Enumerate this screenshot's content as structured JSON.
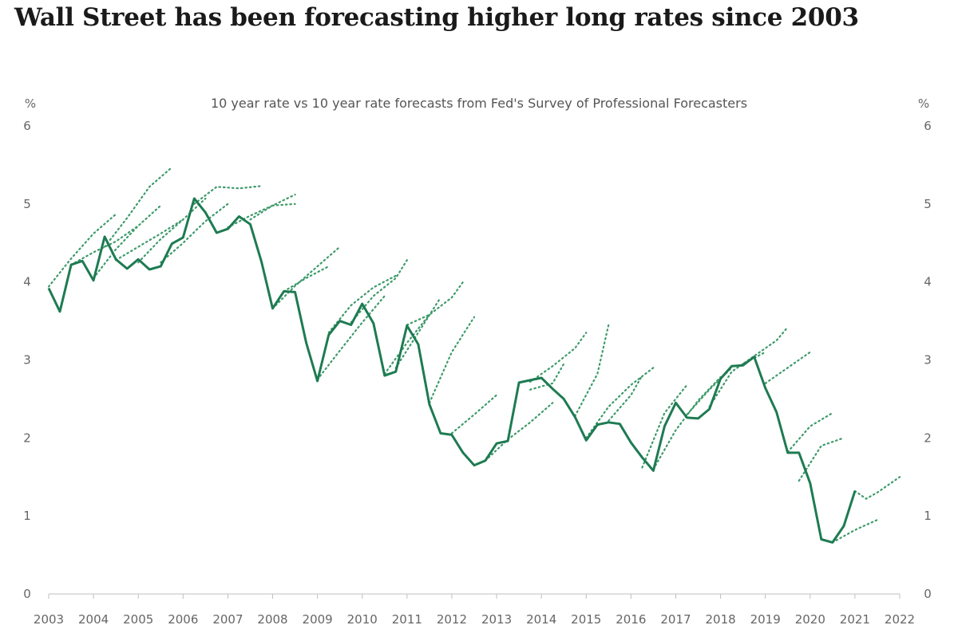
{
  "headline": "Wall Street has been forecasting higher long rates since 2003",
  "chart_data": {
    "type": "line",
    "title": "10 year rate vs 10 year rate forecasts from Fed's Survey of Professional Forecasters",
    "ylabel_left": "%",
    "ylabel_right": "%",
    "xlim": [
      2003,
      2022
    ],
    "ylim": [
      0,
      6
    ],
    "x_ticks": [
      "2003",
      "2004",
      "2005",
      "2006",
      "2007",
      "2008",
      "2009",
      "2010",
      "2011",
      "2012",
      "2013",
      "2014",
      "2015",
      "2016",
      "2017",
      "2018",
      "2019",
      "2020",
      "2021",
      "2022"
    ],
    "y_ticks": [
      "0",
      "1",
      "2",
      "3",
      "4",
      "5",
      "6"
    ],
    "grid": false,
    "colors": {
      "actual": "#1e7b52",
      "forecast": "#3d9a6a"
    },
    "series": [
      {
        "style": "solid",
        "x": [
          2003.0,
          2003.25,
          2003.5,
          2003.75,
          2004.0,
          2004.25,
          2004.5,
          2004.75,
          2005.0,
          2005.25,
          2005.5,
          2005.75,
          2006.0,
          2006.25,
          2006.5,
          2006.75,
          2007.0,
          2007.25,
          2007.5,
          2007.75,
          2008.0,
          2008.25,
          2008.5,
          2008.75,
          2009.0,
          2009.25,
          2009.5,
          2009.75,
          2010.0,
          2010.25,
          2010.5,
          2010.75,
          2011.0,
          2011.25,
          2011.5,
          2011.75,
          2012.0,
          2012.25,
          2012.5,
          2012.75,
          2013.0,
          2013.25,
          2013.5,
          2013.75,
          2014.0,
          2014.25,
          2014.5,
          2014.75,
          2015.0,
          2015.25,
          2015.5,
          2015.75,
          2016.0,
          2016.25,
          2016.5,
          2016.75,
          2017.0,
          2017.25,
          2017.5,
          2017.75,
          2018.0,
          2018.25,
          2018.5,
          2018.75,
          2019.0,
          2019.25,
          2019.5,
          2019.75,
          2020.0,
          2020.25,
          2020.5,
          2020.75,
          2021.0
        ],
        "values": [
          3.92,
          3.62,
          4.22,
          4.27,
          4.02,
          4.58,
          4.29,
          4.17,
          4.29,
          4.16,
          4.2,
          4.49,
          4.57,
          5.07,
          4.89,
          4.63,
          4.68,
          4.84,
          4.74,
          4.26,
          3.66,
          3.88,
          3.87,
          3.22,
          2.73,
          3.32,
          3.5,
          3.45,
          3.72,
          3.47,
          2.8,
          2.85,
          3.44,
          3.2,
          2.43,
          2.06,
          2.04,
          1.81,
          1.65,
          1.71,
          1.93,
          1.96,
          2.71,
          2.74,
          2.77,
          2.63,
          2.5,
          2.27,
          1.97,
          2.17,
          2.2,
          2.18,
          1.94,
          1.75,
          1.58,
          2.15,
          2.45,
          2.26,
          2.25,
          2.37,
          2.76,
          2.92,
          2.93,
          3.04,
          2.64,
          2.33,
          1.81,
          1.81,
          1.42,
          0.7,
          0.66,
          0.87,
          1.32
        ]
      },
      {
        "style": "dotted",
        "x": [
          2003.0,
          2003.5,
          2004.0,
          2004.5
        ],
        "values": [
          3.94,
          4.3,
          4.62,
          4.87
        ]
      },
      {
        "style": "dotted",
        "x": [
          2003.5,
          2004.0,
          2004.5,
          2005.0
        ],
        "values": [
          4.22,
          4.38,
          4.52,
          4.72
        ]
      },
      {
        "style": "dotted",
        "x": [
          2004.0,
          2004.5,
          2005.0,
          2005.5
        ],
        "values": [
          4.05,
          4.42,
          4.72,
          4.98
        ]
      },
      {
        "style": "dotted",
        "x": [
          2004.25,
          2004.75,
          2005.25,
          2005.75
        ],
        "values": [
          4.45,
          4.82,
          5.22,
          5.47
        ]
      },
      {
        "style": "dotted",
        "x": [
          2004.5,
          2005.0,
          2005.5,
          2006.0
        ],
        "values": [
          4.28,
          4.45,
          4.62,
          4.8
        ]
      },
      {
        "style": "dotted",
        "x": [
          2005.0,
          2005.5,
          2006.0,
          2006.5
        ],
        "values": [
          4.25,
          4.55,
          4.8,
          5.07
        ]
      },
      {
        "style": "dotted",
        "x": [
          2005.5,
          2006.0,
          2006.5,
          2007.0
        ],
        "values": [
          4.25,
          4.5,
          4.78,
          5.0
        ]
      },
      {
        "style": "dotted",
        "x": [
          2006.25,
          2006.75,
          2007.25,
          2007.75
        ],
        "values": [
          5.0,
          5.22,
          5.2,
          5.23
        ]
      },
      {
        "style": "dotted",
        "x": [
          2007.0,
          2007.5,
          2008.0,
          2008.5
        ],
        "values": [
          4.7,
          4.85,
          4.98,
          5.12
        ]
      },
      {
        "style": "dotted",
        "x": [
          2007.5,
          2008.0,
          2008.5
        ],
        "values": [
          4.8,
          4.98,
          5.0
        ]
      },
      {
        "style": "dotted",
        "x": [
          2008.0,
          2008.5,
          2009.0,
          2009.5
        ],
        "values": [
          3.66,
          3.95,
          4.2,
          4.45
        ]
      },
      {
        "style": "dotted",
        "x": [
          2008.25,
          2008.75,
          2009.25
        ],
        "values": [
          3.88,
          4.05,
          4.2
        ]
      },
      {
        "style": "dotted",
        "x": [
          2009.0,
          2009.5,
          2010.0,
          2010.5
        ],
        "values": [
          2.75,
          3.12,
          3.48,
          3.82
        ]
      },
      {
        "style": "dotted",
        "x": [
          2009.25,
          2009.75,
          2010.25,
          2010.75
        ],
        "values": [
          3.35,
          3.7,
          3.93,
          4.08
        ]
      },
      {
        "style": "dotted",
        "x": [
          2009.75,
          2010.25,
          2010.75,
          2011.0
        ],
        "values": [
          3.48,
          3.82,
          4.05,
          4.28
        ]
      },
      {
        "style": "dotted",
        "x": [
          2010.5,
          2011.0,
          2011.5
        ],
        "values": [
          2.82,
          3.22,
          3.58
        ]
      },
      {
        "style": "dotted",
        "x": [
          2010.75,
          2011.25,
          2011.75
        ],
        "values": [
          2.9,
          3.35,
          3.8
        ]
      },
      {
        "style": "dotted",
        "x": [
          2011.0,
          2011.5,
          2012.0,
          2012.25
        ],
        "values": [
          3.45,
          3.58,
          3.8,
          4.0
        ]
      },
      {
        "style": "dotted",
        "x": [
          2011.5,
          2012.0,
          2012.5
        ],
        "values": [
          2.45,
          3.1,
          3.55
        ]
      },
      {
        "style": "dotted",
        "x": [
          2012.0,
          2012.5,
          2013.0
        ],
        "values": [
          2.06,
          2.3,
          2.55
        ]
      },
      {
        "style": "dotted",
        "x": [
          2012.75,
          2013.25,
          2013.75,
          2014.25
        ],
        "values": [
          1.71,
          1.98,
          2.2,
          2.45
        ]
      },
      {
        "style": "dotted",
        "x": [
          2013.75,
          2014.25,
          2014.75,
          2015.0
        ],
        "values": [
          2.72,
          2.92,
          3.15,
          3.35
        ]
      },
      {
        "style": "dotted",
        "x": [
          2013.75,
          2014.25,
          2014.5
        ],
        "values": [
          2.62,
          2.7,
          2.95
        ]
      },
      {
        "style": "dotted",
        "x": [
          2014.75,
          2015.25,
          2015.5
        ],
        "values": [
          2.28,
          2.82,
          3.45
        ]
      },
      {
        "style": "dotted",
        "x": [
          2015.0,
          2015.5,
          2016.0,
          2016.5
        ],
        "values": [
          2.0,
          2.4,
          2.68,
          2.9
        ]
      },
      {
        "style": "dotted",
        "x": [
          2015.5,
          2016.0,
          2016.25
        ],
        "values": [
          2.22,
          2.55,
          2.8
        ]
      },
      {
        "style": "dotted",
        "x": [
          2016.25,
          2016.75,
          2017.25
        ],
        "values": [
          1.62,
          2.32,
          2.68
        ]
      },
      {
        "style": "dotted",
        "x": [
          2016.5,
          2017.0,
          2017.5,
          2018.0
        ],
        "values": [
          1.6,
          2.1,
          2.48,
          2.78
        ]
      },
      {
        "style": "dotted",
        "x": [
          2017.25,
          2017.75,
          2018.25
        ],
        "values": [
          2.3,
          2.62,
          2.9
        ]
      },
      {
        "style": "dotted",
        "x": [
          2017.75,
          2018.25,
          2018.75,
          2019.25,
          2019.5
        ],
        "values": [
          2.4,
          2.85,
          3.05,
          3.25,
          3.42
        ]
      },
      {
        "style": "dotted",
        "x": [
          2018.5,
          2019.0
        ],
        "values": [
          2.95,
          3.1
        ]
      },
      {
        "style": "dotted",
        "x": [
          2019.0,
          2019.5,
          2020.0
        ],
        "values": [
          2.7,
          2.9,
          3.1
        ]
      },
      {
        "style": "dotted",
        "x": [
          2019.5,
          2020.0,
          2020.5
        ],
        "values": [
          1.82,
          2.15,
          2.32
        ]
      },
      {
        "style": "dotted",
        "x": [
          2019.75,
          2020.25,
          2020.75
        ],
        "values": [
          1.45,
          1.9,
          2.0
        ]
      },
      {
        "style": "dotted",
        "x": [
          2020.5,
          2021.0,
          2021.5
        ],
        "values": [
          0.66,
          0.82,
          0.95
        ]
      },
      {
        "style": "dotted",
        "x": [
          2021.0,
          2021.25,
          2021.5,
          2022.0
        ],
        "values": [
          1.32,
          1.22,
          1.3,
          1.5
        ]
      }
    ]
  }
}
